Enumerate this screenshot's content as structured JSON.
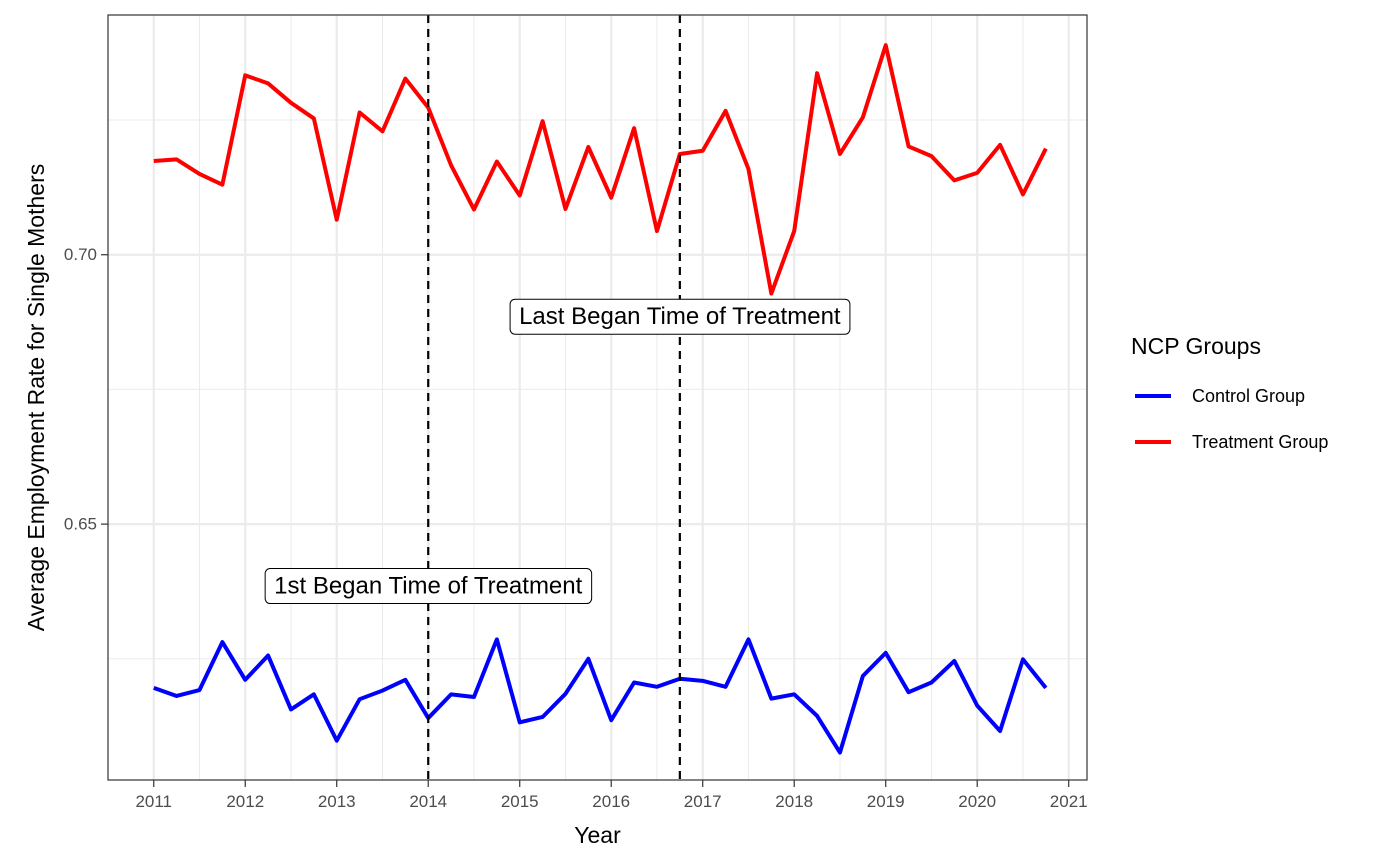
{
  "chart_data": {
    "type": "line",
    "title": "",
    "xlabel": "Year",
    "ylabel": "Average Employment Rate for Single Mothers",
    "xlim": [
      2010.5,
      2021.2
    ],
    "ylim": [
      0.6025,
      0.7445
    ],
    "x_ticks": [
      2011,
      2012,
      2013,
      2014,
      2015,
      2016,
      2017,
      2018,
      2019,
      2020,
      2021
    ],
    "x_tick_labels": [
      "2011",
      "2012",
      "2013",
      "2014",
      "2015",
      "2016",
      "2017",
      "2018",
      "2019",
      "2020",
      "2021"
    ],
    "y_ticks": [
      0.65,
      0.7
    ],
    "y_tick_labels": [
      "0.65",
      "0.70"
    ],
    "grid": true,
    "legend_position": "right",
    "legend_title": "NCP Groups",
    "x": [
      2011,
      2011.25,
      2011.5,
      2011.75,
      2012,
      2012.25,
      2012.5,
      2012.75,
      2013,
      2013.25,
      2013.5,
      2013.75,
      2014,
      2014.25,
      2014.5,
      2014.75,
      2015,
      2015.25,
      2015.5,
      2015.75,
      2016,
      2016.25,
      2016.5,
      2016.75,
      2017,
      2017.25,
      2017.5,
      2017.75,
      2018,
      2018.25,
      2018.5,
      2018.75,
      2019,
      2019.25,
      2019.5,
      2019.75,
      2020,
      2020.25,
      2020.5,
      2020.75
    ],
    "series": [
      {
        "name": "Control Group",
        "color": "#0000ff",
        "values": [
          0.6196,
          0.6181,
          0.6192,
          0.6281,
          0.6211,
          0.6256,
          0.6156,
          0.6184,
          0.6098,
          0.6175,
          0.6191,
          0.6211,
          0.614,
          0.6184,
          0.6179,
          0.6286,
          0.6132,
          0.6142,
          0.6185,
          0.625,
          0.6136,
          0.6206,
          0.6198,
          0.6213,
          0.6209,
          0.6198,
          0.6286,
          0.6176,
          0.6184,
          0.6144,
          0.6076,
          0.6218,
          0.6261,
          0.6188,
          0.6206,
          0.6246,
          0.6163,
          0.6116,
          0.6249,
          0.6196
        ]
      },
      {
        "name": "Treatment Group",
        "color": "#ff0000",
        "values": [
          0.7174,
          0.7177,
          0.715,
          0.713,
          0.7333,
          0.7318,
          0.7282,
          0.7253,
          0.7065,
          0.7264,
          0.7229,
          0.7327,
          0.7273,
          0.7166,
          0.7084,
          0.7173,
          0.711,
          0.7248,
          0.7085,
          0.72,
          0.7106,
          0.7235,
          0.7044,
          0.7187,
          0.7193,
          0.7267,
          0.7159,
          0.6928,
          0.7044,
          0.7337,
          0.7187,
          0.7255,
          0.7389,
          0.7201,
          0.7183,
          0.7138,
          0.7152,
          0.7204,
          0.7112,
          0.7197
        ]
      }
    ],
    "vlines": [
      2014,
      2016.75
    ],
    "annotations": [
      {
        "text": "1st Began Time of Treatment",
        "x": 2014,
        "y": 0.6385
      },
      {
        "text": "Last Began Time of Treatment",
        "x": 2016.75,
        "y": 0.6885
      }
    ]
  }
}
